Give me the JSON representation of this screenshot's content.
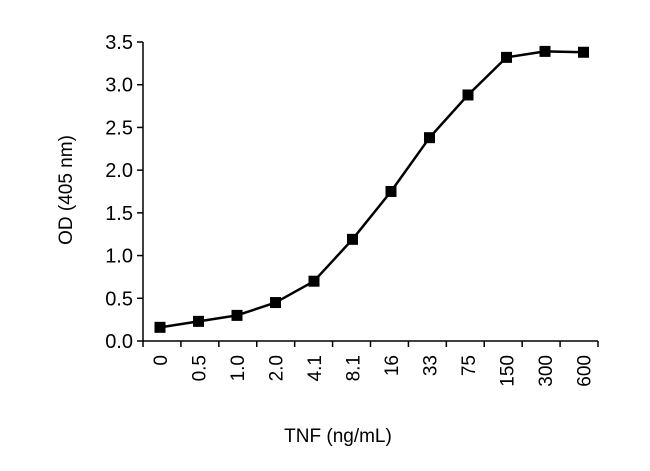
{
  "chart_data": {
    "type": "line",
    "title": "",
    "xlabel": "TNF (ng/mL)",
    "ylabel": "OD (405 nm)",
    "categories": [
      "0",
      "0.5",
      "1.0",
      "2.0",
      "4.1",
      "8.1",
      "16",
      "33",
      "75",
      "150",
      "300",
      "600"
    ],
    "series": [
      {
        "name": "",
        "values": [
          0.16,
          0.23,
          0.3,
          0.45,
          0.7,
          1.19,
          1.75,
          2.38,
          2.88,
          3.32,
          3.39,
          3.38
        ],
        "color": "#000000",
        "marker": "square"
      }
    ],
    "ylim": [
      0,
      3.5
    ],
    "yticks": [
      "0.0",
      "0.5",
      "1.0",
      "1.5",
      "2.0",
      "2.5",
      "3.0",
      "3.5"
    ],
    "grid": false,
    "legend": "none"
  }
}
